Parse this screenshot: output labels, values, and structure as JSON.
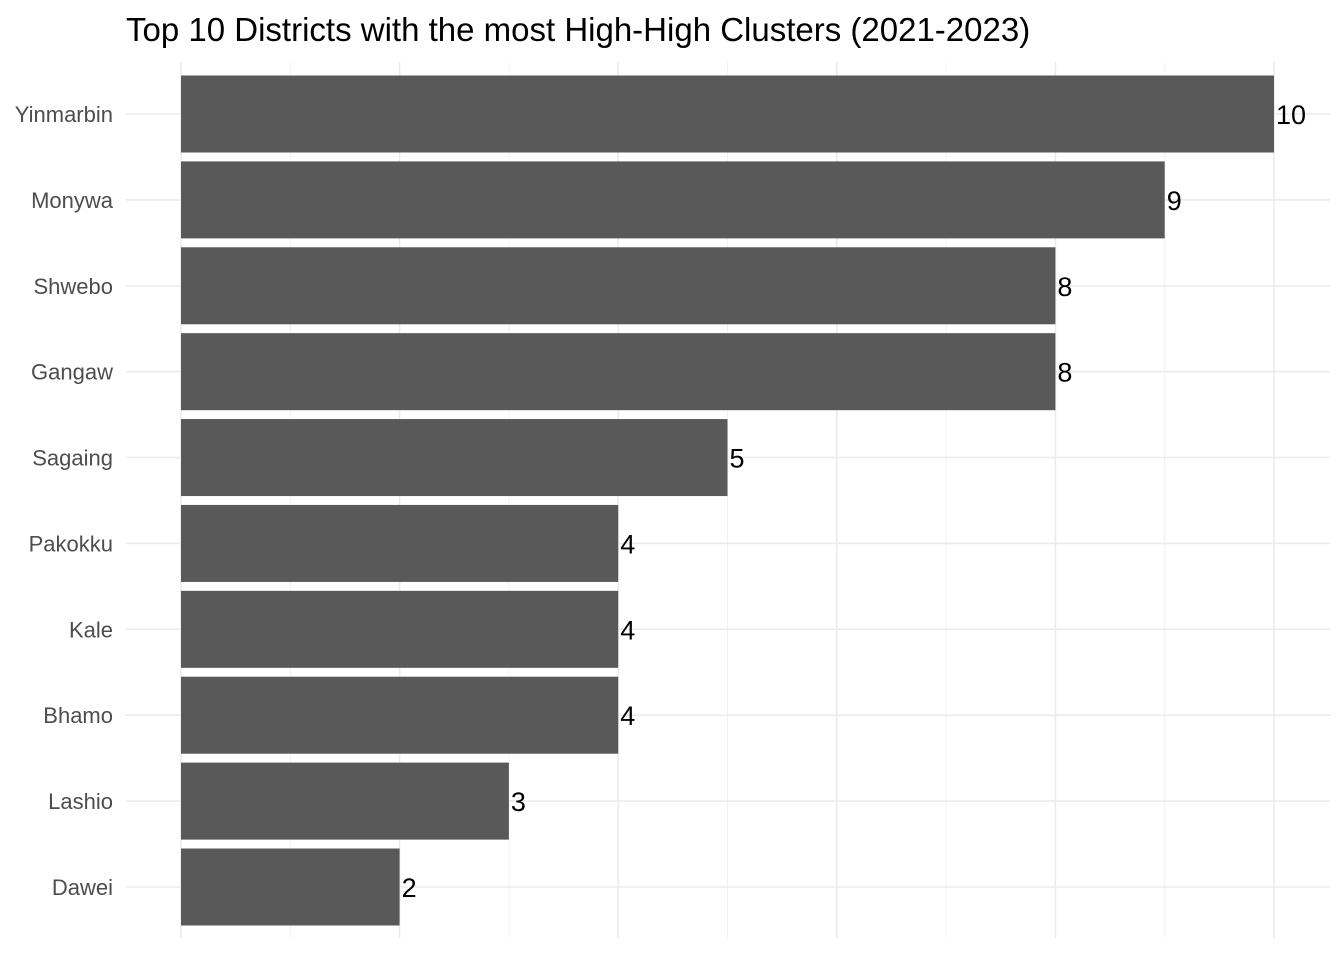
{
  "chart_data": {
    "type": "bar",
    "orientation": "horizontal",
    "title": "Top 10 Districts with the most High-High Clusters (2021-2023)",
    "xlabel": "",
    "ylabel": "",
    "categories": [
      "Yinmarbin",
      "Monywa",
      "Shwebo",
      "Gangaw",
      "Sagaing",
      "Pakokku",
      "Kale",
      "Bhamo",
      "Lashio",
      "Dawei"
    ],
    "values": [
      10,
      9,
      8,
      8,
      5,
      4,
      4,
      4,
      3,
      2
    ],
    "value_labels": [
      "10",
      "9",
      "8",
      "8",
      "5",
      "4",
      "4",
      "4",
      "3",
      "2"
    ],
    "xlim": [
      0,
      10
    ],
    "grid": true,
    "bar_color": "#595959",
    "legend": "none"
  }
}
